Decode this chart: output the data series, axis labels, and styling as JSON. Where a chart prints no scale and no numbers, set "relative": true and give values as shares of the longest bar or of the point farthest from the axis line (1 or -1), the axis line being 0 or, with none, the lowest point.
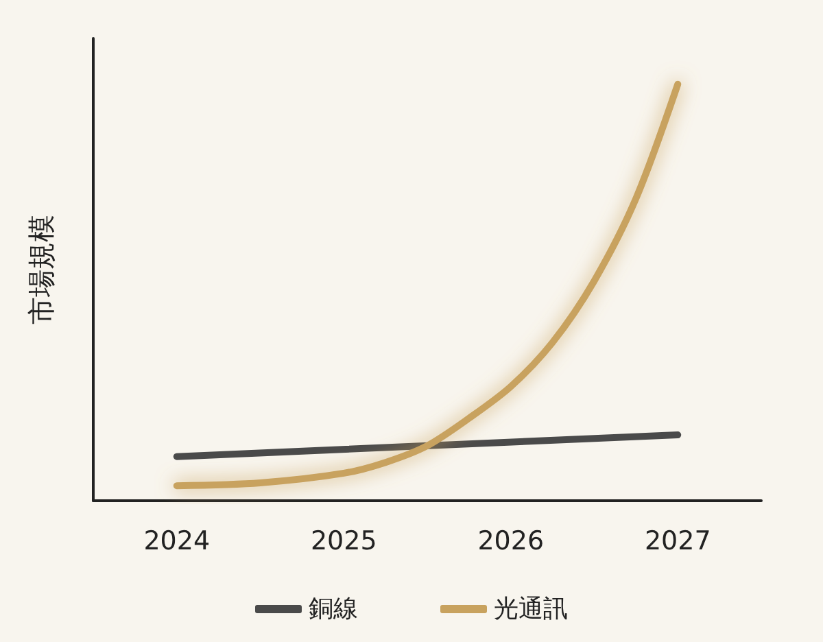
{
  "chart_data": {
    "type": "line",
    "ylabel": "市場規模",
    "relative": true,
    "xlim": [
      2023.5,
      2027.5
    ],
    "xticks": [
      2024,
      2025,
      2026,
      2027
    ],
    "grid": false,
    "legend": "bottom",
    "marker": "none",
    "line_style": "solid",
    "series": [
      {
        "name": "銅線",
        "color": "#4a4a4a",
        "x": [
          2024,
          2027
        ],
        "values": [
          0.106,
          0.158
        ]
      },
      {
        "name": "光通訊",
        "color": "#c8a25e",
        "x": [
          2024,
          2024.5,
          2025,
          2025.25,
          2025.5,
          2025.75,
          2026,
          2026.25,
          2026.5,
          2026.75,
          2027
        ],
        "values": [
          0.036,
          0.043,
          0.066,
          0.092,
          0.132,
          0.198,
          0.274,
          0.38,
          0.528,
          0.726,
          1
        ]
      }
    ]
  }
}
